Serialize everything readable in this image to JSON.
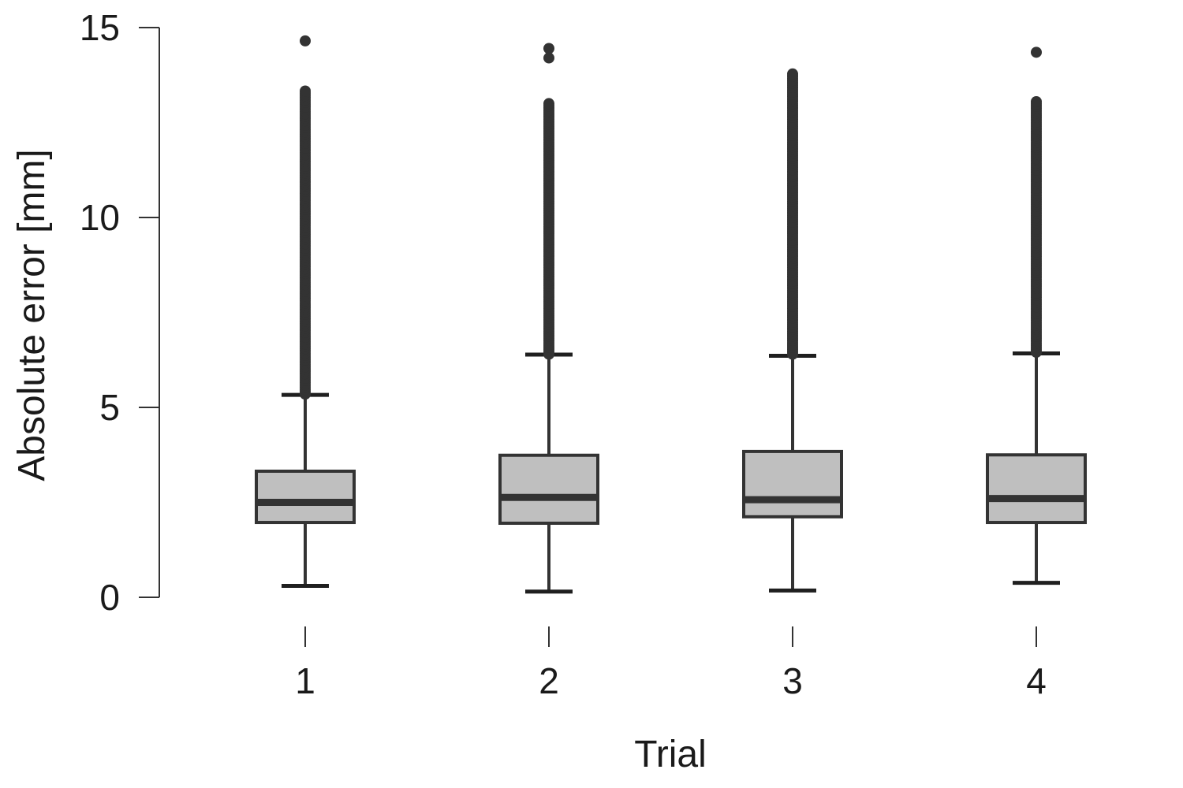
{
  "chart_data": {
    "type": "boxplot",
    "xlabel": "Trial",
    "ylabel": "Absolute error [mm]",
    "ylim": [
      0,
      15
    ],
    "yticks": [
      0,
      5,
      10,
      15
    ],
    "categories": [
      "1",
      "2",
      "3",
      "4"
    ],
    "grid": false,
    "fill_color": "#bfbfbf",
    "line_color": "#333333",
    "boxes": [
      {
        "category": "1",
        "whisker_low": 0.3,
        "q1": 1.97,
        "median": 2.5,
        "q3": 3.32,
        "whisker_high": 5.33,
        "outlier_range": [
          5.35,
          13.35
        ],
        "outliers_isolated": [
          14.65
        ]
      },
      {
        "category": "2",
        "whisker_low": 0.15,
        "q1": 1.95,
        "median": 2.63,
        "q3": 3.74,
        "whisker_high": 6.39,
        "outlier_range": [
          6.4,
          13.05
        ],
        "outliers_isolated": [
          14.2,
          14.45
        ]
      },
      {
        "category": "3",
        "whisker_low": 0.18,
        "q1": 2.12,
        "median": 2.57,
        "q3": 3.84,
        "whisker_high": 6.36,
        "outlier_range": [
          6.4,
          13.8
        ],
        "outliers_isolated": []
      },
      {
        "category": "4",
        "whisker_low": 0.38,
        "q1": 1.97,
        "median": 2.6,
        "q3": 3.75,
        "whisker_high": 6.42,
        "outlier_range": [
          6.45,
          13.1
        ],
        "outliers_isolated": [
          14.35
        ]
      }
    ]
  }
}
